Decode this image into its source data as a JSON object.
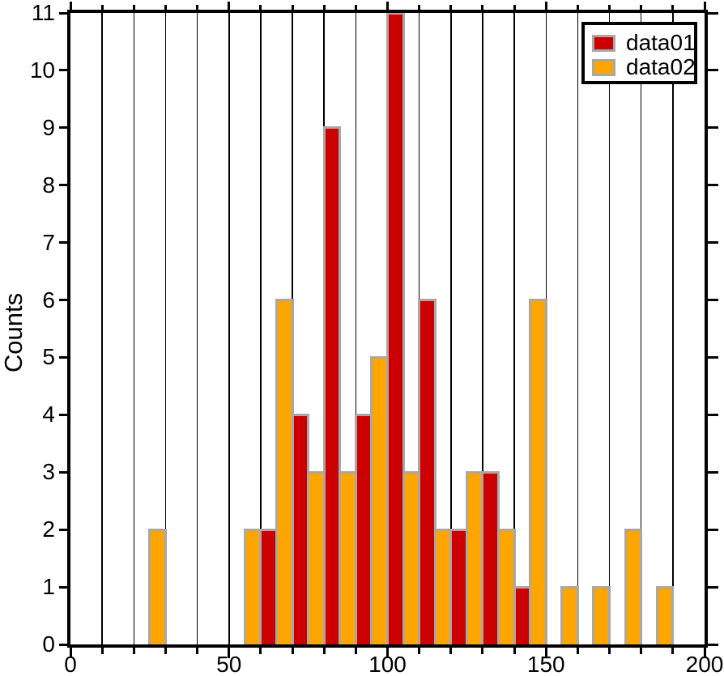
{
  "chart_data": {
    "type": "bar",
    "title": "",
    "xlabel": "",
    "ylabel": "Counts",
    "xlim": [
      0,
      200
    ],
    "ylim": [
      0,
      11
    ],
    "x_major_ticks": [
      0,
      50,
      100,
      150,
      200
    ],
    "x_tick_labels": [
      "0",
      "50",
      "100",
      "150",
      "200"
    ],
    "x_minor_tick_step": 10,
    "y_ticks": [
      0,
      1,
      2,
      3,
      4,
      5,
      6,
      7,
      8,
      9,
      10,
      11
    ],
    "y_tick_labels": [
      "0",
      "1",
      "2",
      "3",
      "4",
      "5",
      "6",
      "7",
      "8",
      "9",
      "10",
      "11"
    ],
    "grid": {
      "vertical_step": 10,
      "horizontal": false
    },
    "legend": {
      "position": "top-right"
    },
    "bin_width": 5,
    "bar_border_color": "#a8a8a8",
    "axis_color": "#000000",
    "background_color": "#ffffff",
    "series": [
      {
        "name": "data01",
        "color": "#cc0000",
        "bars": [
          {
            "x": 60,
            "count": 2
          },
          {
            "x": 70,
            "count": 4
          },
          {
            "x": 80,
            "count": 9
          },
          {
            "x": 90,
            "count": 4
          },
          {
            "x": 100,
            "count": 11
          },
          {
            "x": 110,
            "count": 6
          },
          {
            "x": 120,
            "count": 2
          },
          {
            "x": 130,
            "count": 3
          },
          {
            "x": 140,
            "count": 1
          }
        ]
      },
      {
        "name": "data02",
        "color": "#ffa500",
        "bars": [
          {
            "x": 25,
            "count": 2
          },
          {
            "x": 55,
            "count": 2
          },
          {
            "x": 65,
            "count": 6
          },
          {
            "x": 75,
            "count": 3
          },
          {
            "x": 85,
            "count": 3
          },
          {
            "x": 95,
            "count": 5
          },
          {
            "x": 105,
            "count": 3
          },
          {
            "x": 115,
            "count": 2
          },
          {
            "x": 125,
            "count": 3
          },
          {
            "x": 135,
            "count": 2
          },
          {
            "x": 145,
            "count": 6
          },
          {
            "x": 155,
            "count": 1
          },
          {
            "x": 165,
            "count": 1
          },
          {
            "x": 175,
            "count": 2
          },
          {
            "x": 185,
            "count": 1
          }
        ]
      }
    ]
  }
}
